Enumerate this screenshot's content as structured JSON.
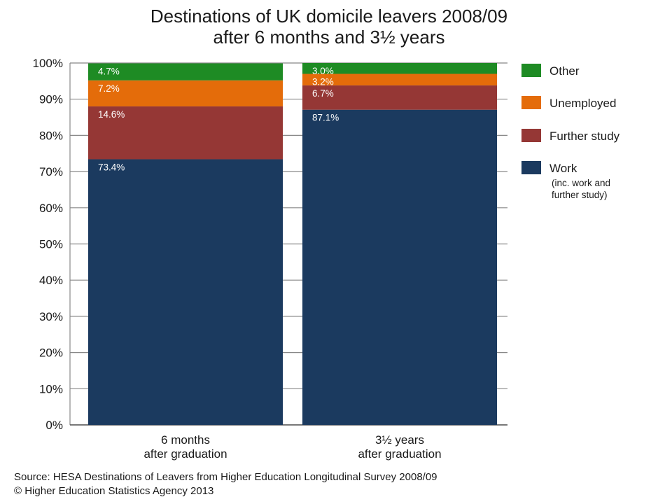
{
  "title_line1": "Destinations of UK domicile leavers 2008/09",
  "title_line2": "after 6 months and 3½ years",
  "footer": {
    "source": "Source: HESA Destinations of Leavers from Higher Education Longitudinal Survey 2008/09",
    "copyright": "© Higher Education Statistics Agency 2013"
  },
  "colors": {
    "Work": "#1b3a5f",
    "Further study": "#953735",
    "Unemployed": "#e46c0a",
    "Other": "#1e8b24",
    "gridline": "#888888"
  },
  "legend_note": [
    "(inc. work and",
    "further study)"
  ],
  "chart_data": {
    "type": "bar",
    "stacked": true,
    "categories": [
      [
        "6 months",
        "after graduation"
      ],
      [
        "3½ years",
        "after graduation"
      ]
    ],
    "series": [
      {
        "name": "Work",
        "values": [
          73.4,
          87.1
        ],
        "labels": [
          "73.4%",
          "87.1%"
        ]
      },
      {
        "name": "Further study",
        "values": [
          14.6,
          6.7
        ],
        "labels": [
          "14.6%",
          "6.7%"
        ]
      },
      {
        "name": "Unemployed",
        "values": [
          7.2,
          3.2
        ],
        "labels": [
          "7.2%",
          "3.2%"
        ]
      },
      {
        "name": "Other",
        "values": [
          4.7,
          3.0
        ],
        "labels": [
          "4.7%",
          "3.0%"
        ]
      }
    ],
    "ylim": [
      0,
      100
    ],
    "yticks": [
      "0%",
      "10%",
      "20%",
      "30%",
      "40%",
      "50%",
      "60%",
      "70%",
      "80%",
      "90%",
      "100%"
    ],
    "grid": true,
    "legend_position": "right",
    "legend_order": [
      "Other",
      "Unemployed",
      "Further study",
      "Work"
    ]
  }
}
